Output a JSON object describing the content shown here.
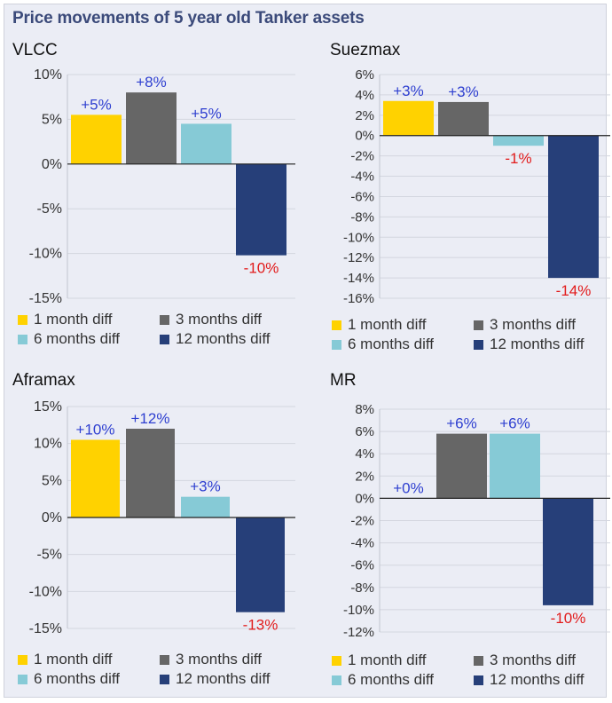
{
  "title": "Price movements of 5 year old Tanker assets",
  "legend_labels": [
    "1 month diff",
    "3 months diff",
    "6 months diff",
    "12 months diff"
  ],
  "colors": {
    "1 month diff": "#ffd200",
    "3 months diff": "#666666",
    "6 months diff": "#86cad6",
    "12 months diff": "#263f79",
    "positive_label": "#2e3fd0",
    "negative_label": "#e21b1b",
    "title": "#3b4a7a"
  },
  "chart_data": [
    {
      "type": "bar",
      "title": "VLCC",
      "categories": [
        "1 month diff",
        "3 months diff",
        "6 months diff",
        "12 months diff"
      ],
      "values": [
        5.5,
        8,
        4.5,
        -10.2
      ],
      "data_labels": [
        "+5%",
        "+8%",
        "+5%",
        "-10%"
      ],
      "ylim": [
        -15,
        10
      ],
      "yticks": [
        10,
        5,
        0,
        -5,
        -10,
        -15
      ],
      "ytick_labels": [
        "10%",
        "5%",
        "0%",
        "-5%",
        "-10%",
        "-15%"
      ],
      "grid": true
    },
    {
      "type": "bar",
      "title": "Suezmax",
      "categories": [
        "1 month diff",
        "3 months diff",
        "6 months diff",
        "12 months diff"
      ],
      "values": [
        3.4,
        3.3,
        -1,
        -14
      ],
      "data_labels": [
        "+3%",
        "+3%",
        "-1%",
        "-14%"
      ],
      "ylim": [
        -16,
        6
      ],
      "yticks": [
        6,
        4,
        2,
        0,
        -2,
        -4,
        -6,
        -8,
        -10,
        -12,
        -14,
        -16
      ],
      "ytick_labels": [
        "6%",
        "4%",
        "2%",
        "0%",
        "-2%",
        "-4%",
        "-6%",
        "-8%",
        "-10%",
        "-12%",
        "-14%",
        "-16%"
      ],
      "grid": true
    },
    {
      "type": "bar",
      "title": "Aframax",
      "categories": [
        "1 month diff",
        "3 months diff",
        "6 months diff",
        "12 months diff"
      ],
      "values": [
        10.5,
        12,
        2.8,
        -12.8
      ],
      "data_labels": [
        "+10%",
        "+12%",
        "+3%",
        "-13%"
      ],
      "ylim": [
        -15,
        15
      ],
      "yticks": [
        15,
        10,
        5,
        0,
        -5,
        -10,
        -15
      ],
      "ytick_labels": [
        "15%",
        "10%",
        "5%",
        "0%",
        "-5%",
        "-10%",
        "-15%"
      ],
      "grid": true
    },
    {
      "type": "bar",
      "title": "MR",
      "categories": [
        "1 month diff",
        "3 months diff",
        "6 months diff",
        "12 months diff"
      ],
      "values": [
        0,
        5.8,
        5.8,
        -9.6
      ],
      "data_labels": [
        "+0%",
        "+6%",
        "+6%",
        "-10%"
      ],
      "ylim": [
        -12,
        8
      ],
      "yticks": [
        8,
        6,
        4,
        2,
        0,
        -2,
        -4,
        -6,
        -8,
        -10,
        -12
      ],
      "ytick_labels": [
        "8%",
        "6%",
        "4%",
        "2%",
        "0%",
        "-2%",
        "-4%",
        "-6%",
        "-8%",
        "-10%",
        "-12%"
      ],
      "grid": true
    }
  ]
}
